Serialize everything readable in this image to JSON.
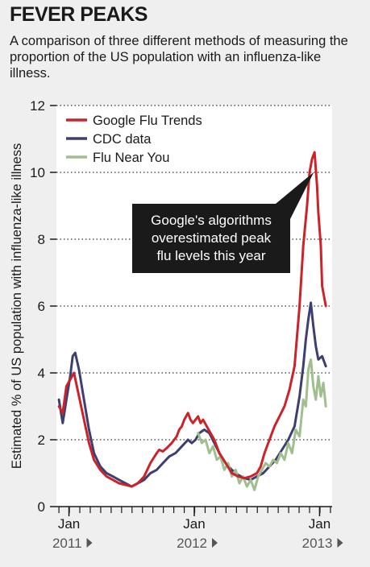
{
  "title": "FEVER PEAKS",
  "subtitle": "A comparison of three different methods of measuring the proportion of the US population with an influenza-like illness.",
  "chart_data": {
    "type": "line",
    "ylabel": "Estimated % of US population with influenza-like illness",
    "xlabel": "",
    "ylim": [
      0,
      12
    ],
    "yticks": [
      0,
      2,
      4,
      6,
      8,
      10,
      12
    ],
    "grid": "horizontal dotted",
    "legend_placement": "top-left",
    "xticks": [
      {
        "month": "Jan",
        "year": "2011",
        "x": 2011.0
      },
      {
        "month": "Jan",
        "year": "2012",
        "x": 2012.0
      },
      {
        "month": "Jan",
        "year": "2013",
        "x": 2013.0
      }
    ],
    "annotation": {
      "lines": [
        "Google's algorithms",
        "overestimated peak",
        "flu levels this year"
      ],
      "points_to": {
        "x": 2012.98,
        "y": 10.2
      }
    },
    "series": [
      {
        "name": "Google Flu Trends",
        "color": "#cc2229",
        "x": [
          2010.92,
          2010.95,
          2010.98,
          2011.01,
          2011.04,
          2011.08,
          2011.12,
          2011.16,
          2011.2,
          2011.25,
          2011.3,
          2011.35,
          2011.4,
          2011.45,
          2011.5,
          2011.55,
          2011.6,
          2011.65,
          2011.7,
          2011.72,
          2011.75,
          2011.78,
          2011.82,
          2011.86,
          2011.88,
          2011.9,
          2011.92,
          2011.95,
          2011.97,
          2011.99,
          2012.01,
          2012.03,
          2012.05,
          2012.07,
          2012.1,
          2012.13,
          2012.16,
          2012.2,
          2012.25,
          2012.3,
          2012.35,
          2012.4,
          2012.45,
          2012.5,
          2012.53,
          2012.56,
          2012.6,
          2012.64,
          2012.68,
          2012.72,
          2012.76,
          2012.8,
          2012.84,
          2012.87,
          2012.9,
          2012.92,
          2012.94,
          2012.96,
          2012.98,
          2012.99,
          2013.01,
          2013.02,
          2013.05
        ],
        "values": [
          3.0,
          2.8,
          3.6,
          3.8,
          4.0,
          3.3,
          2.6,
          1.9,
          1.4,
          1.1,
          0.9,
          0.8,
          0.7,
          0.65,
          0.6,
          0.7,
          0.9,
          1.3,
          1.6,
          1.7,
          1.65,
          1.75,
          1.9,
          2.1,
          2.3,
          2.4,
          2.6,
          2.8,
          2.6,
          2.5,
          2.6,
          2.7,
          2.5,
          2.6,
          2.4,
          2.2,
          2.0,
          1.6,
          1.3,
          1.0,
          0.9,
          0.85,
          0.9,
          1.0,
          1.2,
          1.6,
          2.0,
          2.4,
          2.7,
          3.0,
          3.5,
          4.2,
          6.0,
          7.8,
          9.0,
          10.0,
          10.4,
          10.6,
          9.6,
          8.8,
          7.8,
          6.6,
          6.0
        ]
      },
      {
        "name": "CDC data",
        "color": "#3d3f72",
        "x": [
          2010.92,
          2010.95,
          2010.98,
          2011.01,
          2011.03,
          2011.05,
          2011.08,
          2011.12,
          2011.16,
          2011.2,
          2011.25,
          2011.3,
          2011.35,
          2011.4,
          2011.45,
          2011.5,
          2011.55,
          2011.6,
          2011.65,
          2011.7,
          2011.75,
          2011.8,
          2011.85,
          2011.9,
          2011.95,
          2011.98,
          2012.01,
          2012.04,
          2012.08,
          2012.12,
          2012.16,
          2012.2,
          2012.25,
          2012.3,
          2012.35,
          2012.4,
          2012.45,
          2012.5,
          2012.55,
          2012.6,
          2012.65,
          2012.7,
          2012.75,
          2012.8,
          2012.84,
          2012.87,
          2012.89,
          2012.91,
          2012.93,
          2012.95,
          2012.97,
          2012.99,
          2013.02,
          2013.05
        ],
        "values": [
          3.2,
          2.5,
          3.2,
          3.9,
          4.5,
          4.6,
          4.1,
          3.2,
          2.3,
          1.6,
          1.2,
          1.0,
          0.9,
          0.8,
          0.7,
          0.6,
          0.7,
          0.8,
          1.0,
          1.1,
          1.3,
          1.5,
          1.6,
          1.8,
          2.0,
          1.9,
          2.0,
          2.2,
          2.3,
          2.2,
          1.9,
          1.6,
          1.3,
          1.1,
          0.95,
          0.85,
          0.8,
          0.9,
          1.0,
          1.2,
          1.4,
          1.7,
          2.0,
          2.4,
          3.3,
          4.2,
          5.0,
          5.6,
          6.1,
          5.4,
          4.8,
          4.4,
          4.5,
          4.2
        ]
      },
      {
        "name": "Flu Near You",
        "color": "#9fbf8f",
        "x": [
          2012.03,
          2012.06,
          2012.09,
          2012.12,
          2012.15,
          2012.18,
          2012.21,
          2012.24,
          2012.27,
          2012.3,
          2012.33,
          2012.36,
          2012.39,
          2012.42,
          2012.45,
          2012.48,
          2012.51,
          2012.54,
          2012.57,
          2012.6,
          2012.63,
          2012.66,
          2012.69,
          2012.72,
          2012.75,
          2012.78,
          2012.81,
          2012.84,
          2012.87,
          2012.89,
          2012.91,
          2012.93,
          2012.95,
          2012.97,
          2012.99,
          2013.01,
          2013.03,
          2013.05
        ],
        "values": [
          2.2,
          1.9,
          2.0,
          1.6,
          1.8,
          1.4,
          1.5,
          1.1,
          1.3,
          0.9,
          1.1,
          0.7,
          0.9,
          0.6,
          0.8,
          0.5,
          0.9,
          1.1,
          1.3,
          1.2,
          1.4,
          1.3,
          1.6,
          1.4,
          1.9,
          1.6,
          2.3,
          2.1,
          3.2,
          3.0,
          4.1,
          4.4,
          3.6,
          3.2,
          3.9,
          3.3,
          3.7,
          3.0
        ]
      }
    ]
  }
}
